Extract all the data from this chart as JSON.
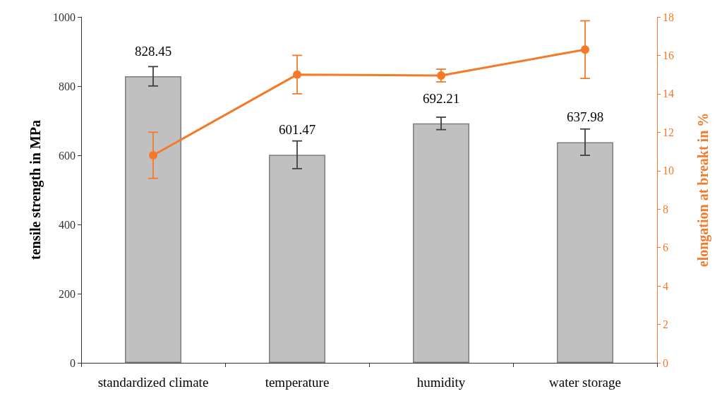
{
  "chart_data": {
    "type": "bar",
    "ylabel": "tensile strength in MPa",
    "y2label": "elongation at breakt in %",
    "categories": [
      "standardized climate",
      "temperature",
      "humidity",
      "water storage"
    ],
    "series": [
      {
        "color": "#c0c0c0",
        "values": [
          828.45,
          601.47,
          692.21,
          637.98
        ],
        "errors": [
          28,
          40,
          18,
          38
        ],
        "value_labels": [
          "828.45",
          "601.47",
          "692.21",
          "637.98"
        ]
      },
      {
        "type": "line",
        "axis": "y2",
        "color": "#f47a2a",
        "values": [
          10.8,
          15.0,
          14.95,
          16.3
        ],
        "errors": [
          1.2,
          1.0,
          0.33,
          1.5
        ]
      }
    ],
    "ylim": [
      0,
      1000
    ],
    "yticks": [
      0,
      200,
      400,
      600,
      800,
      1000
    ],
    "y2lim": [
      0,
      18
    ],
    "y2ticks": [
      0,
      2,
      4,
      6,
      8,
      10,
      12,
      14,
      16,
      18
    ],
    "grid": false,
    "marker": "circle",
    "line_style": "solid"
  }
}
